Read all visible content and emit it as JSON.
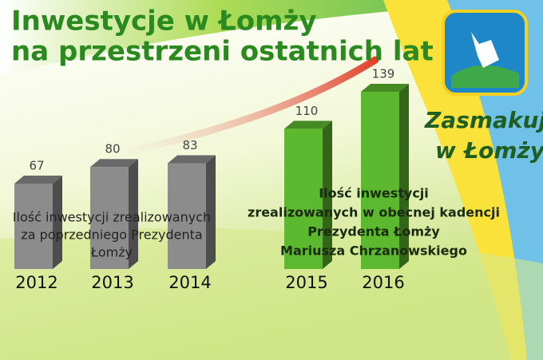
{
  "chart_data": {
    "type": "bar",
    "title": [
      "Inwestycje w Łomży",
      "na przestrzeni ostatnich lat"
    ],
    "categories": [
      "2012",
      "2013",
      "2014",
      "2015",
      "2016"
    ],
    "values": [
      67,
      80,
      83,
      110,
      139
    ],
    "colors": [
      "#8c8c8c",
      "#8c8c8c",
      "#8c8c8c",
      "#5cb82e",
      "#5cb82e"
    ],
    "annotations": [
      [
        "Ilość inwestycji zrealizowanych",
        "za poprzedniego Prezydenta",
        "Łomży"
      ],
      [
        "Ilość inwestycji",
        "zrealizowanych w obecnej kadencji",
        "Prezydenta Łomży",
        "Mariusza Chrzanowskiego"
      ]
    ],
    "logo": [
      "Zasmakuj",
      "w Łomży"
    ]
  }
}
